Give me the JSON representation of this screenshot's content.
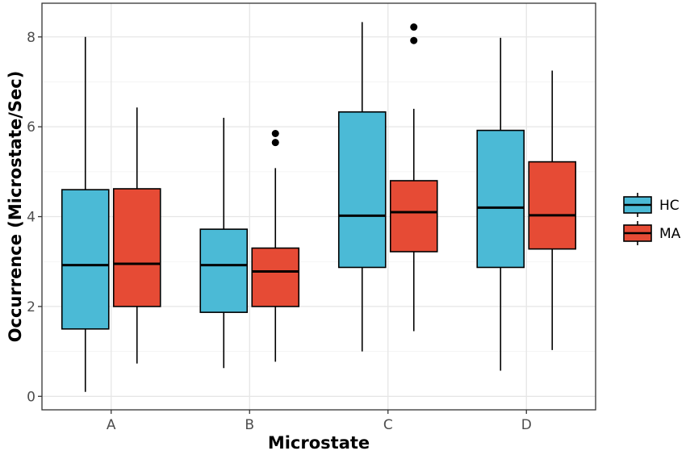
{
  "chart_data": {
    "type": "boxplot",
    "title": "",
    "xlabel": "Microstate",
    "ylabel": "Occurrence (Microstate/Sec)",
    "ylim": [
      -0.3,
      8.75
    ],
    "yticks": [
      0,
      2,
      4,
      6,
      8
    ],
    "ytick_labels": [
      "0",
      "2",
      "4",
      "6",
      "8"
    ],
    "categories": [
      "A",
      "B",
      "C",
      "D"
    ],
    "grid": true,
    "legend_position": "right",
    "series": [
      {
        "name": "HC",
        "color": "#4bbad6",
        "boxes": [
          {
            "category": "A",
            "whisker_low": 0.1,
            "q1": 1.5,
            "median": 2.92,
            "q3": 4.6,
            "whisker_high": 8.0,
            "outliers": []
          },
          {
            "category": "B",
            "whisker_low": 0.63,
            "q1": 1.87,
            "median": 2.92,
            "q3": 3.72,
            "whisker_high": 6.2,
            "outliers": []
          },
          {
            "category": "C",
            "whisker_low": 1.0,
            "q1": 2.87,
            "median": 4.02,
            "q3": 6.33,
            "whisker_high": 8.33,
            "outliers": []
          },
          {
            "category": "D",
            "whisker_low": 0.57,
            "q1": 2.87,
            "median": 4.2,
            "q3": 5.92,
            "whisker_high": 7.98,
            "outliers": []
          }
        ]
      },
      {
        "name": "MA",
        "color": "#e64b35",
        "boxes": [
          {
            "category": "A",
            "whisker_low": 0.73,
            "q1": 2.0,
            "median": 2.95,
            "q3": 4.62,
            "whisker_high": 6.43,
            "outliers": []
          },
          {
            "category": "B",
            "whisker_low": 0.77,
            "q1": 2.0,
            "median": 2.78,
            "q3": 3.3,
            "whisker_high": 5.08,
            "outliers": [
              5.65,
              5.85
            ]
          },
          {
            "category": "C",
            "whisker_low": 1.45,
            "q1": 3.22,
            "median": 4.1,
            "q3": 4.8,
            "whisker_high": 6.4,
            "outliers": [
              7.92,
              8.22
            ]
          },
          {
            "category": "D",
            "whisker_low": 1.03,
            "q1": 3.28,
            "median": 4.03,
            "q3": 5.22,
            "whisker_high": 7.25,
            "outliers": []
          }
        ]
      }
    ]
  }
}
